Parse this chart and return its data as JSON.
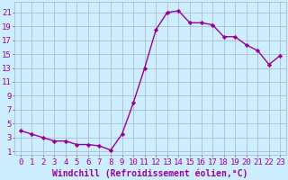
{
  "x": [
    0,
    1,
    2,
    3,
    4,
    5,
    6,
    7,
    8,
    9,
    10,
    11,
    12,
    13,
    14,
    15,
    16,
    17,
    18,
    19,
    20,
    21,
    22,
    23
  ],
  "y": [
    4.0,
    3.5,
    3.0,
    2.5,
    2.5,
    2.0,
    2.0,
    1.8,
    1.2,
    3.5,
    8.0,
    13.0,
    18.5,
    21.0,
    21.2,
    19.5,
    19.5,
    19.2,
    17.5,
    17.5,
    16.3,
    15.5,
    13.5,
    14.8
  ],
  "line_color": "#990099",
  "marker": "D",
  "marker_size": 2.2,
  "bg_color": "#cceeff",
  "grid_color": "#aab0cc",
  "xlabel": "Windchill (Refroidissement éolien,°C)",
  "xlabel_fontsize": 7.0,
  "ylabel_ticks": [
    1,
    3,
    5,
    7,
    9,
    11,
    13,
    15,
    17,
    19,
    21
  ],
  "xlim": [
    -0.5,
    23.5
  ],
  "ylim": [
    0.5,
    22.5
  ],
  "tick_fontsize": 6.5,
  "tick_color": "#990099",
  "axis_label_color": "#990099",
  "linewidth": 1.0
}
